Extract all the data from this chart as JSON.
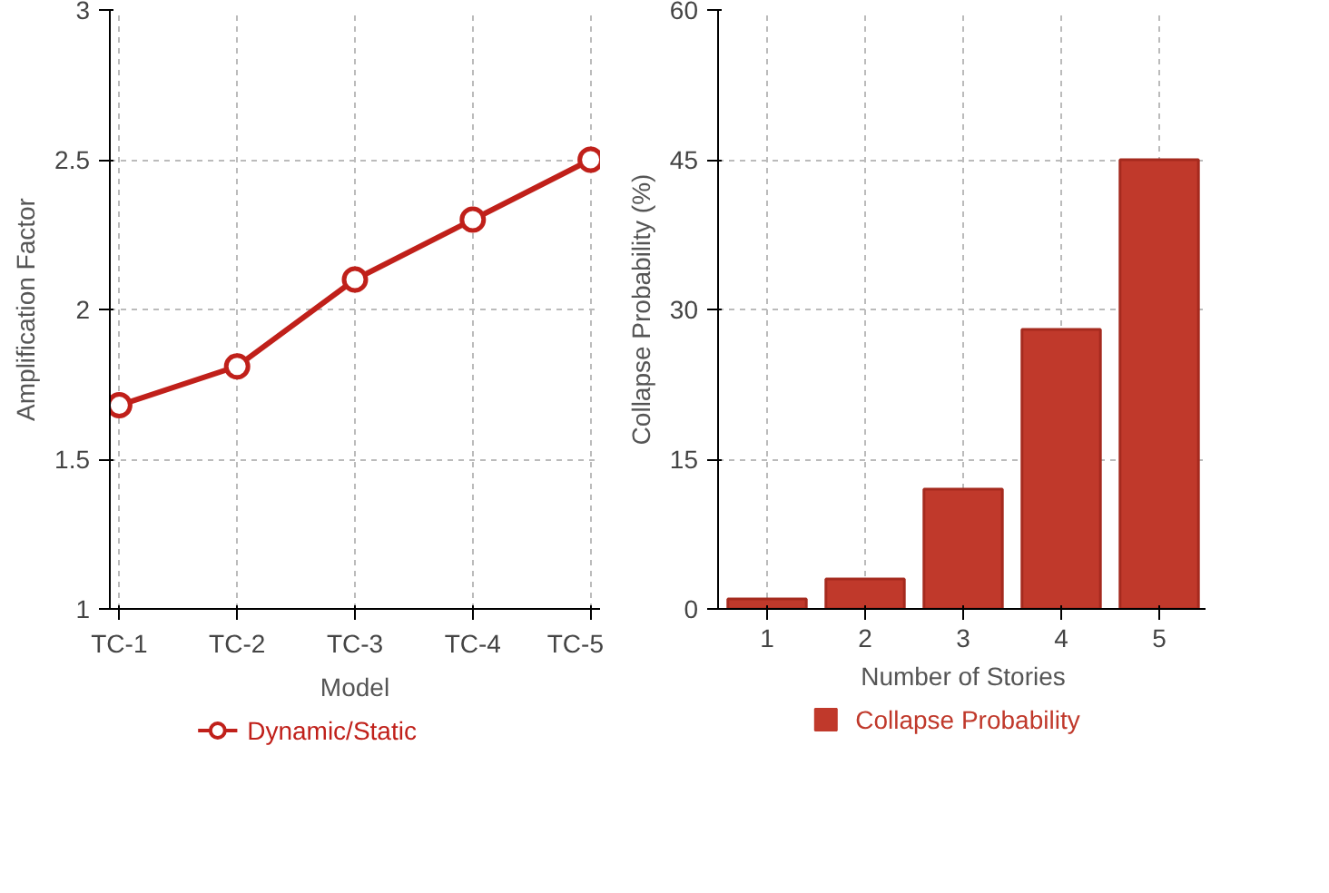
{
  "chart_data": [
    {
      "type": "line",
      "categories": [
        "TC-1",
        "TC-2",
        "TC-3",
        "TC-4",
        "TC-5"
      ],
      "xlabel": "Model",
      "ylabel": "Amplification Factor",
      "ylim": [
        1,
        3
      ],
      "yticks": [
        1,
        1.5,
        2,
        2.5,
        3
      ],
      "grid": true,
      "legend": "bottom",
      "marker": "circle",
      "line_style": "solid",
      "series": [
        {
          "name": "Dynamic/Static",
          "color": "#c0201a",
          "values": [
            1.68,
            1.81,
            2.1,
            2.3,
            2.5
          ]
        }
      ]
    },
    {
      "type": "bar",
      "categories": [
        "1",
        "2",
        "3",
        "4",
        "5"
      ],
      "xlabel": "Number of Stories",
      "ylabel": "Collapse Probability (%)",
      "ylim": [
        0,
        60
      ],
      "yticks": [
        0,
        15,
        30,
        45,
        60
      ],
      "grid": true,
      "legend": "bottom",
      "series": [
        {
          "name": "Collapse Probability",
          "color": "#c0392b",
          "values": [
            1,
            3,
            12,
            28,
            45
          ]
        }
      ]
    }
  ]
}
